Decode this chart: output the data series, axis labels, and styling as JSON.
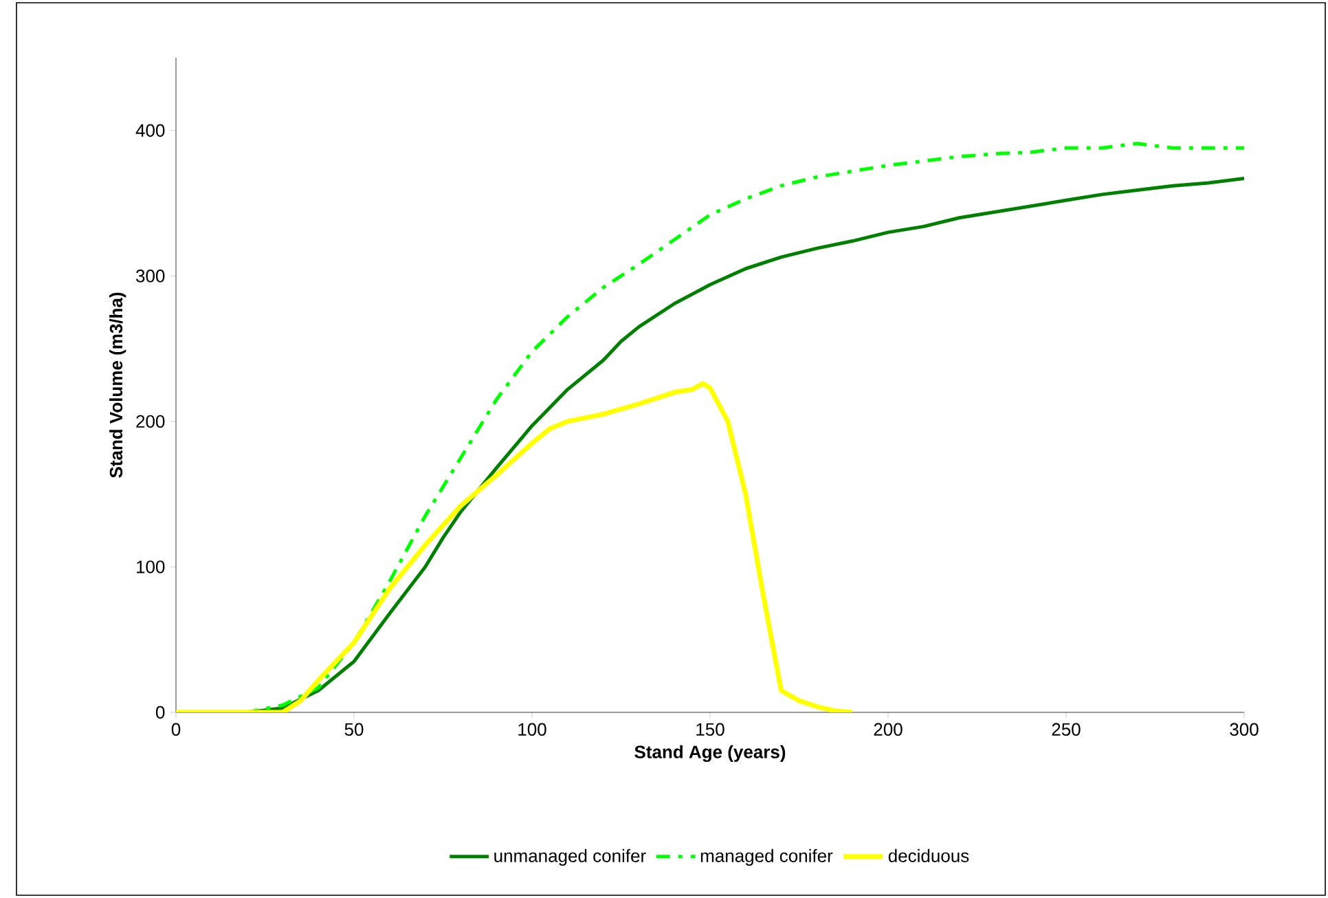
{
  "chart_data": {
    "type": "line",
    "xlabel": "Stand Age (years)",
    "ylabel": "Stand Volume (m3/ha)",
    "xlim": [
      0,
      300
    ],
    "xticks": [
      0,
      50,
      100,
      150,
      200,
      250,
      300
    ],
    "ylim": [
      0,
      450
    ],
    "yticks": [
      0,
      100,
      200,
      300,
      400
    ],
    "grid": false,
    "legend": "bottom",
    "marker": "none",
    "series": [
      {
        "name": "unmanaged conifer",
        "color": "#008000",
        "line_style": "solid",
        "x": [
          0,
          20,
          30,
          40,
          50,
          60,
          70,
          75,
          80,
          90,
          100,
          110,
          120,
          125,
          130,
          140,
          150,
          160,
          170,
          180,
          190,
          200,
          210,
          220,
          230,
          240,
          250,
          260,
          270,
          280,
          290,
          300
        ],
        "values": [
          0,
          0,
          3,
          15,
          35,
          68,
          100,
          120,
          138,
          168,
          197,
          222,
          242,
          255,
          265,
          281,
          294,
          305,
          313,
          319,
          324,
          330,
          334,
          340,
          344,
          348,
          352,
          356,
          359,
          362,
          364,
          367
        ]
      },
      {
        "name": "managed conifer",
        "color": "#00ff00",
        "line_style": "dashed",
        "x": [
          0,
          20,
          30,
          40,
          50,
          60,
          70,
          80,
          90,
          100,
          110,
          120,
          130,
          140,
          150,
          160,
          170,
          180,
          190,
          200,
          210,
          220,
          230,
          240,
          250,
          260,
          270,
          280,
          290,
          300
        ],
        "values": [
          0,
          0,
          5,
          17,
          48,
          90,
          135,
          175,
          215,
          248,
          272,
          292,
          308,
          325,
          342,
          353,
          362,
          368,
          372,
          376,
          379,
          382,
          384,
          385,
          388,
          388,
          391,
          388,
          388,
          388
        ]
      },
      {
        "name": "deciduous",
        "color": "#ffff00",
        "line_style": "solid",
        "x": [
          0,
          30,
          35,
          40,
          50,
          60,
          70,
          80,
          90,
          100,
          105,
          110,
          120,
          130,
          140,
          145,
          148,
          150,
          155,
          160,
          165,
          170,
          175,
          180,
          185,
          190
        ],
        "values": [
          0,
          0,
          8,
          22,
          48,
          85,
          115,
          142,
          163,
          185,
          195,
          200,
          205,
          212,
          220,
          222,
          226,
          223,
          200,
          150,
          80,
          15,
          8,
          4,
          1,
          0
        ]
      }
    ]
  }
}
